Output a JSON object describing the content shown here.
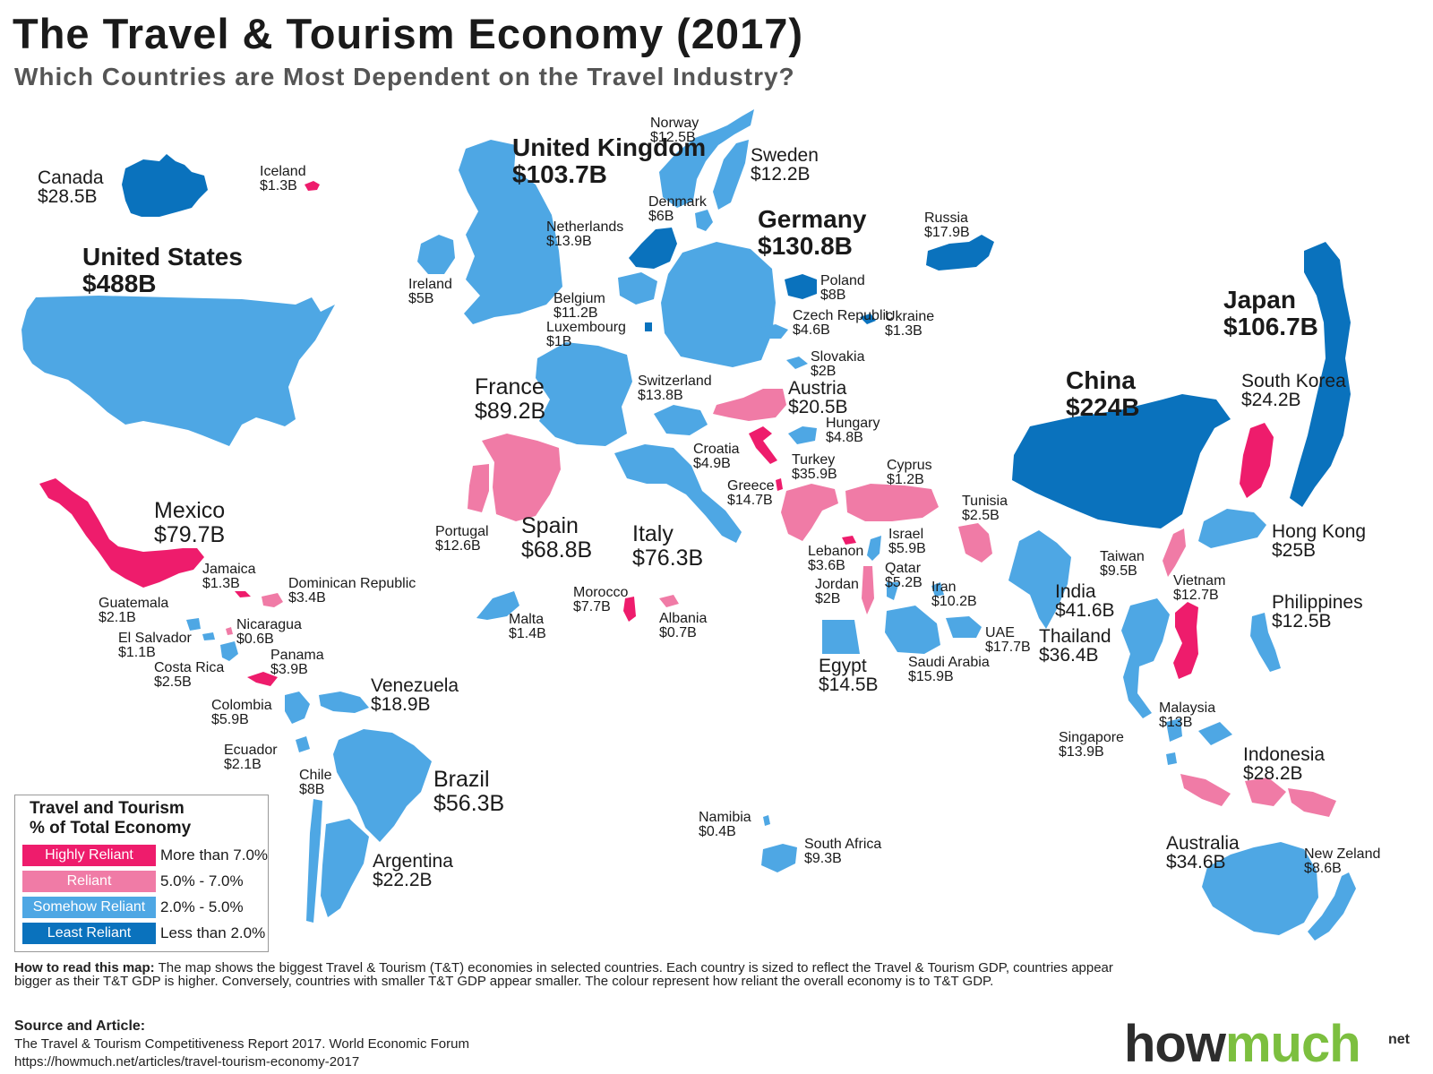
{
  "header": {
    "title": "The Travel & Tourism Economy (2017)",
    "subtitle": "Which Countries are Most Dependent on the Travel Industry?"
  },
  "colors": {
    "highly_reliant": "#ee1c6c",
    "reliant": "#f07ba6",
    "somehow_reliant": "#4ea7e4",
    "least_reliant": "#0a72bd"
  },
  "countries": [
    {
      "name": "Canada",
      "value": "$28.5B",
      "category": "least_reliant"
    },
    {
      "name": "Iceland",
      "value": "$1.3B",
      "category": "highly_reliant"
    },
    {
      "name": "United States",
      "value": "$488B",
      "category": "somehow_reliant"
    },
    {
      "name": "Mexico",
      "value": "$79.7B",
      "category": "highly_reliant"
    },
    {
      "name": "Jamaica",
      "value": "$1.3B",
      "category": "highly_reliant"
    },
    {
      "name": "Dominican Republic",
      "value": "$3.4B",
      "category": "reliant"
    },
    {
      "name": "Guatemala",
      "value": "$2.1B",
      "category": "somehow_reliant"
    },
    {
      "name": "Nicaragua",
      "value": "$0.6B",
      "category": "reliant"
    },
    {
      "name": "El Salvador",
      "value": "$1.1B",
      "category": "somehow_reliant"
    },
    {
      "name": "Costa Rica",
      "value": "$2.5B",
      "category": "somehow_reliant"
    },
    {
      "name": "Panama",
      "value": "$3.9B",
      "category": "highly_reliant"
    },
    {
      "name": "Colombia",
      "value": "$5.9B",
      "category": "somehow_reliant"
    },
    {
      "name": "Venezuela",
      "value": "$18.9B",
      "category": "somehow_reliant"
    },
    {
      "name": "Ecuador",
      "value": "$2.1B",
      "category": "somehow_reliant"
    },
    {
      "name": "Chile",
      "value": "$8B",
      "category": "somehow_reliant"
    },
    {
      "name": "Brazil",
      "value": "$56.3B",
      "category": "somehow_reliant"
    },
    {
      "name": "Argentina",
      "value": "$22.2B",
      "category": "somehow_reliant"
    },
    {
      "name": "United Kingdom",
      "value": "$103.7B",
      "category": "somehow_reliant"
    },
    {
      "name": "Ireland",
      "value": "$5B",
      "category": "somehow_reliant"
    },
    {
      "name": "Norway",
      "value": "$12.5B",
      "category": "somehow_reliant"
    },
    {
      "name": "Sweden",
      "value": "$12.2B",
      "category": "somehow_reliant"
    },
    {
      "name": "Denmark",
      "value": "$6B",
      "category": "somehow_reliant"
    },
    {
      "name": "Netherlands",
      "value": "$13.9B",
      "category": "least_reliant"
    },
    {
      "name": "Belgium",
      "value": "$11.2B",
      "category": "somehow_reliant"
    },
    {
      "name": "Luxembourg",
      "value": "$1B",
      "category": "least_reliant"
    },
    {
      "name": "Germany",
      "value": "$130.8B",
      "category": "somehow_reliant"
    },
    {
      "name": "Poland",
      "value": "$8B",
      "category": "least_reliant"
    },
    {
      "name": "Czech Republic",
      "value": "$4.6B",
      "category": "somehow_reliant"
    },
    {
      "name": "Slovakia",
      "value": "$2B",
      "category": "somehow_reliant"
    },
    {
      "name": "Ukraine",
      "value": "$1.3B",
      "category": "least_reliant"
    },
    {
      "name": "Russia",
      "value": "$17.9B",
      "category": "least_reliant"
    },
    {
      "name": "France",
      "value": "$89.2B",
      "category": "somehow_reliant"
    },
    {
      "name": "Switzerland",
      "value": "$13.8B",
      "category": "somehow_reliant"
    },
    {
      "name": "Austria",
      "value": "$20.5B",
      "category": "reliant"
    },
    {
      "name": "Hungary",
      "value": "$4.8B",
      "category": "somehow_reliant"
    },
    {
      "name": "Croatia",
      "value": "$4.9B",
      "category": "highly_reliant"
    },
    {
      "name": "Spain",
      "value": "$68.8B",
      "category": "reliant"
    },
    {
      "name": "Portugal",
      "value": "$12.6B",
      "category": "reliant"
    },
    {
      "name": "Italy",
      "value": "$76.3B",
      "category": "somehow_reliant"
    },
    {
      "name": "Albania",
      "value": "$0.7B",
      "category": "reliant"
    },
    {
      "name": "Greece",
      "value": "$14.7B",
      "category": "highly_reliant"
    },
    {
      "name": "Turkey",
      "value": "$35.9B",
      "category": "reliant"
    },
    {
      "name": "Cyprus",
      "value": "$1.2B",
      "category": "reliant"
    },
    {
      "name": "Lebanon",
      "value": "$3.6B",
      "category": "highly_reliant"
    },
    {
      "name": "Israel",
      "value": "$5.9B",
      "category": "somehow_reliant"
    },
    {
      "name": "Jordan",
      "value": "$2B",
      "category": "reliant"
    },
    {
      "name": "Qatar",
      "value": "$5.2B",
      "category": "somehow_reliant"
    },
    {
      "name": "Iran",
      "value": "$10.2B",
      "category": "somehow_reliant"
    },
    {
      "name": "Tunisia",
      "value": "$2.5B",
      "category": "reliant"
    },
    {
      "name": "Morocco",
      "value": "$7.7B",
      "category": "highly_reliant"
    },
    {
      "name": "Malta",
      "value": "$1.4B",
      "category": "somehow_reliant"
    },
    {
      "name": "Egypt",
      "value": "$14.5B",
      "category": "somehow_reliant"
    },
    {
      "name": "Saudi Arabia",
      "value": "$15.9B",
      "category": "somehow_reliant"
    },
    {
      "name": "UAE",
      "value": "$17.7B",
      "category": "somehow_reliant"
    },
    {
      "name": "India",
      "value": "$41.6B",
      "category": "somehow_reliant"
    },
    {
      "name": "China",
      "value": "$224B",
      "category": "somehow_reliant"
    },
    {
      "name": "Japan",
      "value": "$106.7B",
      "category": "somehow_reliant"
    },
    {
      "name": "South Korea",
      "value": "$24.2B",
      "category": "least_reliant"
    },
    {
      "name": "Taiwan",
      "value": "$9.5B",
      "category": "least_reliant"
    },
    {
      "name": "Hong Kong",
      "value": "$25B",
      "category": "highly_reliant"
    },
    {
      "name": "Vietnam",
      "value": "$12.7B",
      "category": "reliant"
    },
    {
      "name": "Philippines",
      "value": "$12.5B",
      "category": "somehow_reliant"
    },
    {
      "name": "Thailand",
      "value": "$36.4B",
      "category": "highly_reliant"
    },
    {
      "name": "Malaysia",
      "value": "$13B",
      "category": "somehow_reliant"
    },
    {
      "name": "Singapore",
      "value": "$13.9B",
      "category": "somehow_reliant"
    },
    {
      "name": "Indonesia",
      "value": "$28.2B",
      "category": "somehow_reliant"
    },
    {
      "name": "Australia",
      "value": "$34.6B",
      "category": "somehow_reliant"
    },
    {
      "name": "New Zeland",
      "value": "$8.6B",
      "category": "reliant"
    },
    {
      "name": "Namibia",
      "value": "$0.4B",
      "category": "somehow_reliant"
    },
    {
      "name": "South Africa",
      "value": "$9.3B",
      "category": "somehow_reliant"
    }
  ],
  "legend": {
    "title_line1": "Travel and Tourism",
    "title_line2": "% of Total Economy",
    "items": [
      {
        "label": "Highly Reliant",
        "range": "More than 7.0%",
        "color": "#ee1c6c"
      },
      {
        "label": "Reliant",
        "range": "5.0% - 7.0%",
        "color": "#f07ba6"
      },
      {
        "label": "Somehow Reliant",
        "range": "2.0% - 5.0%",
        "color": "#4ea7e4"
      },
      {
        "label": "Least Reliant",
        "range": "Less than 2.0%",
        "color": "#0a72bd"
      }
    ]
  },
  "footer": {
    "howto_label": "How to read this map:",
    "howto_text": " The map shows the biggest Travel & Tourism (T&T) economies in selected countries. Each country is sized to reflect the Travel & Tourism GDP, countries appear bigger as their T&T GDP is higher.  Conversely, countries with smaller T&T GDP appear smaller. The colour represent how reliant the overall economy is to T&T GDP.",
    "source_label": "Source and Article:",
    "source_line1": "The Travel & Tourism Competitiveness Report 2017. World Economic Forum",
    "source_line2": "https://howmuch.net/articles/travel-tourism-economy-2017"
  },
  "logo": {
    "part1": "how",
    "part2": "much",
    "suffix": "net"
  }
}
